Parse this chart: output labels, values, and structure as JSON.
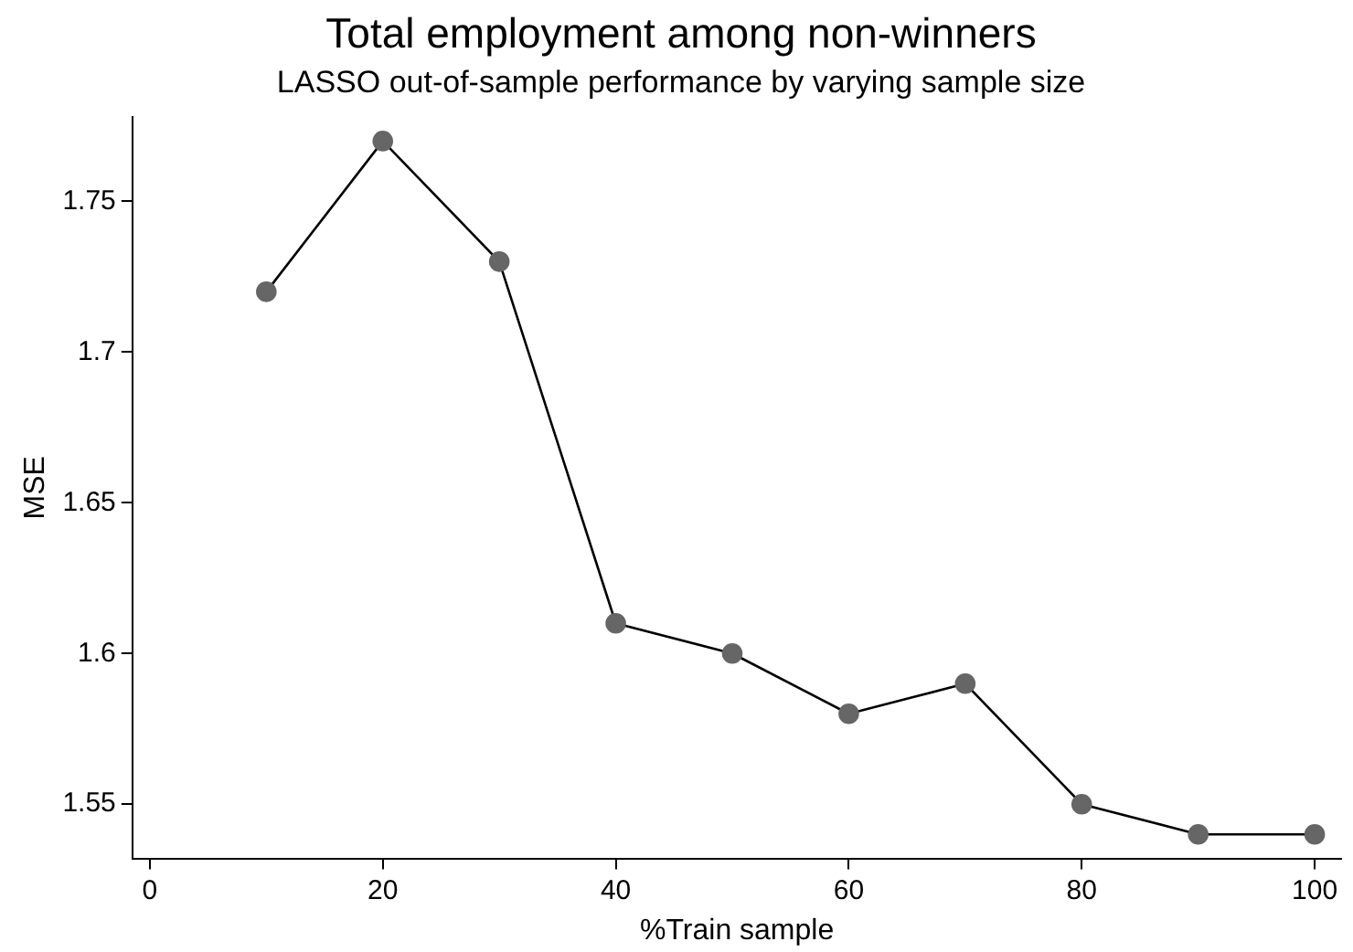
{
  "chart_data": {
    "type": "line",
    "title": "Total employment among non-winners",
    "subtitle": "LASSO out-of-sample performance by varying sample size",
    "xlabel": "%Train sample",
    "ylabel": "MSE",
    "x": [
      10,
      20,
      30,
      40,
      50,
      60,
      70,
      80,
      90,
      100
    ],
    "series": [
      {
        "color": "#000000",
        "values": [
          1.72,
          1.77,
          1.73,
          1.61,
          1.6,
          1.58,
          1.59,
          1.55,
          1.54,
          1.54
        ]
      }
    ],
    "marker": "circle",
    "grid": false,
    "legend": false,
    "xlim": [
      -1.5,
      102.3
    ],
    "xticks": [
      0,
      20,
      40,
      60,
      80,
      100
    ],
    "ylim": [
      1.532,
      1.778
    ],
    "yticks": [
      1.55,
      1.6,
      1.65,
      1.7,
      1.75
    ]
  }
}
